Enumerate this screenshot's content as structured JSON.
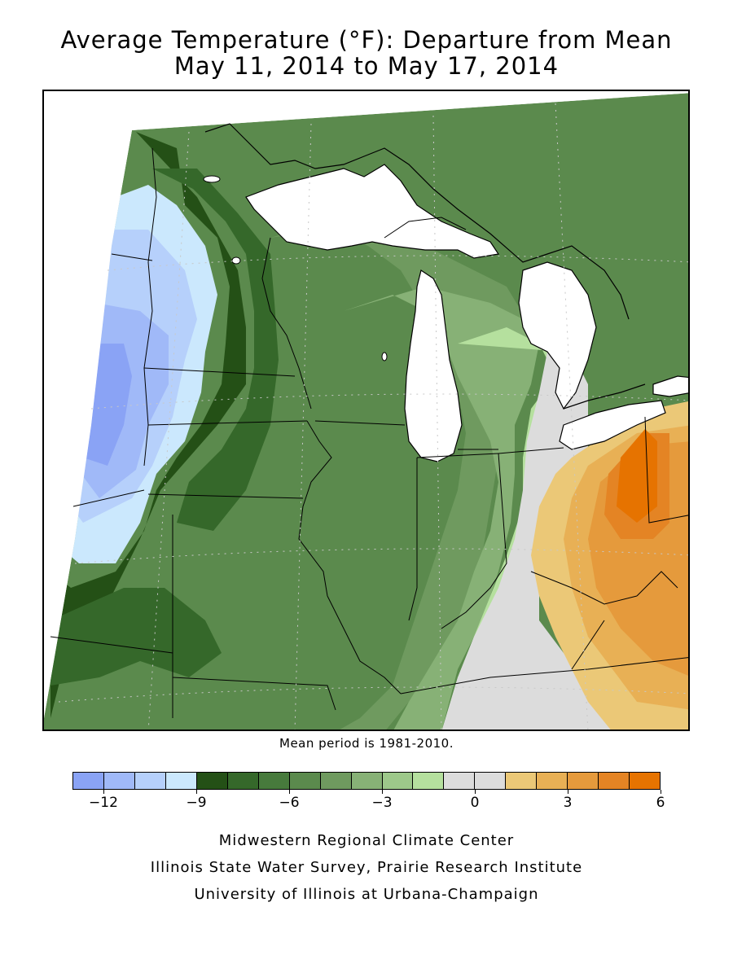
{
  "header": {
    "title_line1": "Average Temperature (°F): Departure from Mean",
    "title_line2": "May 11, 2014 to May 17, 2014"
  },
  "map": {
    "mean_note": "Mean period is 1981-2010.",
    "lake_color": "#ffffff",
    "state_line_color": "#000000"
  },
  "legend": {
    "colors": [
      "#8aa3f5",
      "#a0b9f8",
      "#b6d0fb",
      "#cbe8fd",
      "#245016",
      "#35682a",
      "#477a3c",
      "#5b8a4d",
      "#6f9a5f",
      "#87b176",
      "#9dc88a",
      "#b5e09e",
      "#dcdcdc",
      "#dcdcdc",
      "#ebc877",
      "#e8b055",
      "#e59a3c",
      "#e48424",
      "#e67300"
    ],
    "tick_labels": [
      "-12",
      "-9",
      "-6",
      "-3",
      "0",
      "3",
      "6"
    ]
  },
  "credits": {
    "line1": "Midwestern Regional Climate Center",
    "line2": "Illinois State Water Survey, Prairie Research Institute",
    "line3": "University of Illinois at Urbana-Champaign"
  }
}
